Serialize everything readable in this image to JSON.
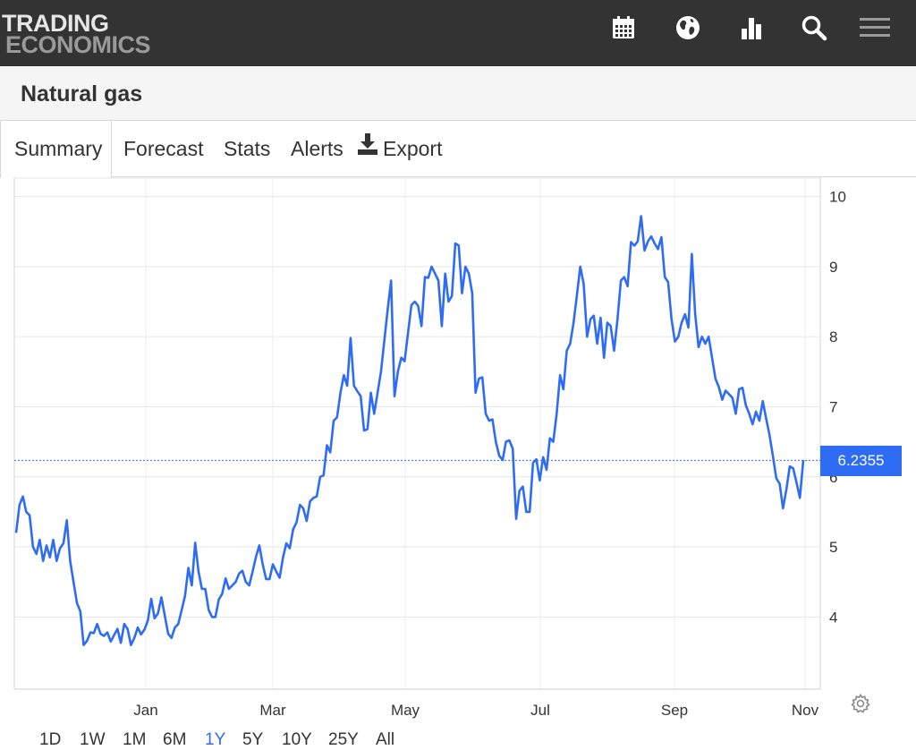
{
  "brand": {
    "line1": "TRADING",
    "line2": "ECONOMICS"
  },
  "nav_icons": [
    "calendar-icon",
    "globe-icon",
    "bar-chart-icon",
    "search-icon",
    "menu-icon"
  ],
  "page": {
    "title": "Natural gas"
  },
  "tabs": [
    {
      "label": "Summary",
      "active": true
    },
    {
      "label": "Forecast",
      "active": false
    },
    {
      "label": "Stats",
      "active": false
    },
    {
      "label": "Alerts",
      "active": false
    },
    {
      "label": "Export",
      "active": false,
      "icon": "download-icon"
    }
  ],
  "ranges": [
    {
      "label": "1D",
      "active": false
    },
    {
      "label": "1W",
      "active": false
    },
    {
      "label": "1M",
      "active": false
    },
    {
      "label": "6M",
      "active": false
    },
    {
      "label": "1Y",
      "active": true
    },
    {
      "label": "5Y",
      "active": false
    },
    {
      "label": "10Y",
      "active": false
    },
    {
      "label": "25Y",
      "active": false
    },
    {
      "label": "All",
      "active": false
    }
  ],
  "colors": {
    "topbar": "#333333",
    "line": "#2e6cf6",
    "accent": "#2e6cf6"
  },
  "chart_data": {
    "type": "line",
    "title": "",
    "xlabel": "",
    "ylabel": "",
    "x_ticks": [
      "Jan",
      "Mar",
      "May",
      "Jul",
      "Sep",
      "Nov"
    ],
    "y_ticks": [
      4,
      5,
      6,
      7,
      8,
      9,
      10
    ],
    "ylim": [
      2.97,
      10.25
    ],
    "y_axis_side": "right",
    "grid": true,
    "last_value": "6.2355",
    "last_value_numeric": 6.2355,
    "series": [
      {
        "values": [
          5.2,
          5.6,
          5.72,
          5.5,
          5.45,
          5.0,
          4.9,
          5.1,
          4.8,
          5.02,
          4.85,
          5.1,
          4.8,
          4.98,
          5.05,
          5.38,
          4.8,
          4.5,
          4.2,
          4.08,
          3.6,
          3.66,
          3.78,
          3.77,
          3.9,
          3.76,
          3.73,
          3.78,
          3.65,
          3.74,
          3.83,
          3.63,
          3.9,
          3.83,
          3.6,
          3.7,
          3.85,
          3.75,
          3.82,
          3.95,
          4.26,
          3.98,
          4.05,
          4.28,
          4.02,
          3.76,
          3.7,
          3.85,
          3.9,
          4.1,
          4.3,
          4.7,
          4.45,
          5.06,
          4.65,
          4.4,
          4.4,
          4.1,
          4.0,
          4.0,
          4.25,
          4.33,
          4.55,
          4.4,
          4.45,
          4.5,
          4.62,
          4.66,
          4.5,
          4.45,
          4.65,
          4.86,
          5.02,
          4.75,
          4.54,
          4.54,
          4.75,
          4.65,
          4.56,
          4.85,
          5.05,
          4.98,
          5.25,
          5.35,
          5.6,
          5.55,
          5.37,
          5.65,
          5.7,
          5.72,
          6.0,
          6.02,
          6.45,
          6.35,
          6.8,
          6.85,
          7.2,
          7.45,
          7.3,
          7.98,
          7.3,
          7.22,
          7.15,
          6.66,
          6.68,
          7.2,
          6.9,
          7.2,
          7.5,
          7.95,
          8.4,
          8.8,
          7.15,
          7.5,
          7.7,
          7.65,
          8.05,
          8.45,
          8.5,
          8.44,
          8.15,
          8.85,
          8.84,
          9.0,
          8.9,
          8.8,
          8.15,
          8.9,
          8.5,
          8.58,
          9.33,
          9.3,
          8.62,
          9.0,
          8.9,
          8.62,
          7.2,
          7.4,
          7.42,
          6.9,
          6.8,
          6.82,
          6.5,
          6.3,
          6.24,
          6.5,
          6.52,
          6.4,
          5.4,
          5.8,
          5.86,
          5.5,
          5.5,
          6.2,
          6.25,
          5.95,
          6.28,
          6.1,
          6.55,
          6.5,
          6.9,
          7.45,
          7.25,
          7.8,
          7.9,
          8.2,
          8.6,
          9.0,
          8.75,
          8.0,
          8.25,
          8.3,
          7.9,
          8.27,
          7.7,
          8.2,
          8.15,
          7.8,
          8.25,
          8.8,
          8.85,
          8.72,
          9.35,
          9.3,
          9.36,
          9.72,
          9.23,
          9.36,
          9.43,
          9.33,
          9.25,
          9.42,
          8.85,
          8.78,
          8.25,
          7.93,
          8.0,
          8.2,
          8.32,
          8.13,
          9.18,
          8.33,
          7.85,
          8.0,
          7.9,
          8.0,
          7.7,
          7.4,
          7.28,
          7.1,
          7.23,
          7.18,
          7.13,
          6.9,
          7.25,
          7.27,
          7.02,
          6.9,
          6.75,
          6.93,
          6.8,
          7.08,
          6.83,
          6.6,
          6.3,
          5.98,
          5.9,
          5.55,
          5.82,
          6.15,
          6.12,
          5.92,
          5.7,
          6.24
        ]
      }
    ]
  }
}
